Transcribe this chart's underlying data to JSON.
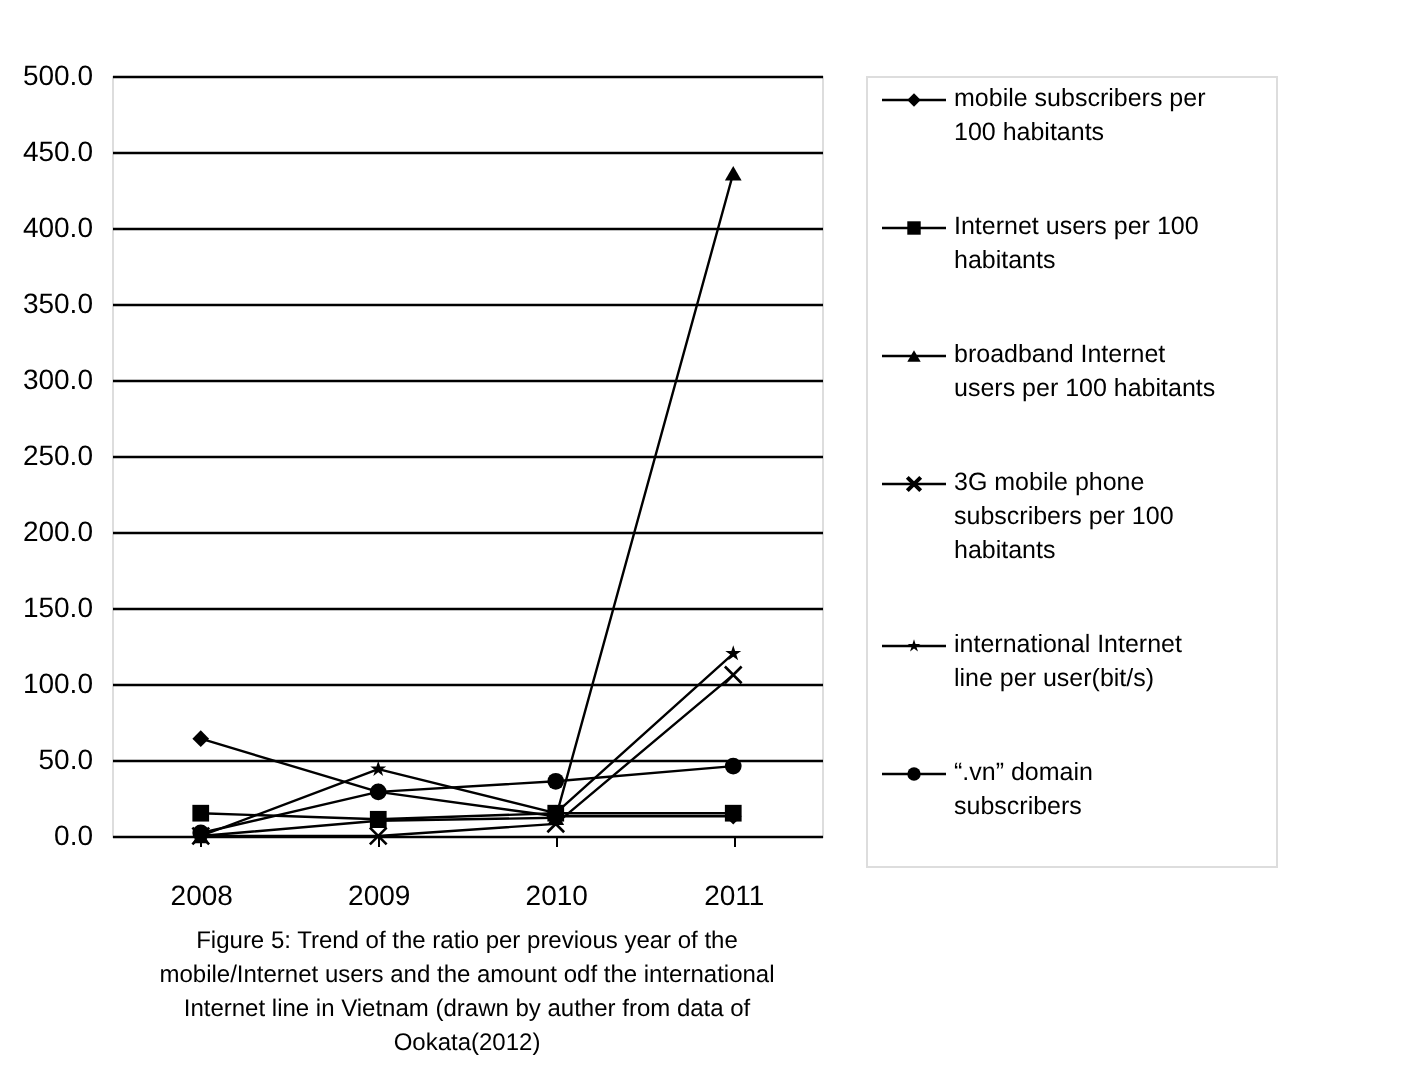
{
  "chart_data": {
    "type": "line",
    "categories": [
      "2008",
      "2009",
      "2010",
      "2011"
    ],
    "series": [
      {
        "name": "mobile subscribers per 100 habitants",
        "color": "#000000",
        "marker": "diamond",
        "values": [
          64,
          29,
          13,
          13
        ]
      },
      {
        "name": "Internet users per 100 habitants",
        "color": "#000000",
        "marker": "square",
        "values": [
          15,
          11,
          15,
          15
        ]
      },
      {
        "name": "broadband Internet users per 100 habitants",
        "color": "#000000",
        "marker": "triangle",
        "values": [
          0,
          10,
          12,
          436
        ]
      },
      {
        "name": "3G mobile phone subscribers per 100 habitants",
        "color": "#000000",
        "marker": "cross",
        "values": [
          0,
          0,
          8,
          106
        ]
      },
      {
        "name": "international Internet line per user(bit/s)",
        "color": "#000000",
        "marker": "star",
        "values": [
          0,
          44,
          15,
          120
        ]
      },
      {
        "name": "“.vn” domain subscribers",
        "color": "#000000",
        "marker": "circle",
        "values": [
          2,
          29,
          36,
          46
        ]
      }
    ],
    "ylim": [
      0,
      500
    ],
    "yticks": [
      {
        "value": 0,
        "label": "0.0"
      },
      {
        "value": 50,
        "label": "50.0"
      },
      {
        "value": 100,
        "label": "100.0"
      },
      {
        "value": 150,
        "label": "150.0"
      },
      {
        "value": 200,
        "label": "200.0"
      },
      {
        "value": 250,
        "label": "250.0"
      },
      {
        "value": 300,
        "label": "300.0"
      },
      {
        "value": 350,
        "label": "350.0"
      },
      {
        "value": 400,
        "label": "400.0"
      },
      {
        "value": 450,
        "label": "450.0"
      },
      {
        "value": 500,
        "label": "500.0"
      }
    ],
    "grid": "y",
    "legend": "right",
    "annotations": [
      "Figure 5: Trend of the ratio per previous year of the",
      "mobile/Internet users and the amount odf the international",
      "Internet line in Vietnam (drawn by auther from data of",
      "Ookata(2012)"
    ]
  }
}
